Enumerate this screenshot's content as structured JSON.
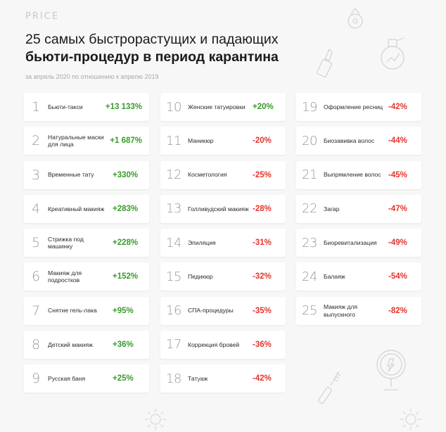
{
  "brand": "PRICE",
  "title_line1": "25 самых быстрорастущих и падающих",
  "title_line2": "бьюти-процедур в период карантина",
  "subtitle": "за апрель 2020 по отношению к апрелю 2019",
  "colors": {
    "positive": "#3a9a2c",
    "negative": "#e8332b"
  },
  "items": [
    {
      "rank": "1",
      "label": "Бьюти-такси",
      "value": "+13 133%",
      "trend": "up"
    },
    {
      "rank": "2",
      "label": "Натуральные маски для лица",
      "value": "+1 687%",
      "trend": "up"
    },
    {
      "rank": "3",
      "label": "Временные тату",
      "value": "+330%",
      "trend": "up"
    },
    {
      "rank": "4",
      "label": "Креативный макияж",
      "value": "+283%",
      "trend": "up"
    },
    {
      "rank": "5",
      "label": "Стрижка под машинку",
      "value": "+228%",
      "trend": "up"
    },
    {
      "rank": "6",
      "label": "Макияж для подростков",
      "value": "+152%",
      "trend": "up"
    },
    {
      "rank": "7",
      "label": "Снятие гель-лака",
      "value": "+95%",
      "trend": "up"
    },
    {
      "rank": "8",
      "label": "Детский макияж",
      "value": "+36%",
      "trend": "up"
    },
    {
      "rank": "9",
      "label": "Русская баня",
      "value": "+25%",
      "trend": "up"
    },
    {
      "rank": "10",
      "label": "Женские татуировки",
      "value": "+20%",
      "trend": "up"
    },
    {
      "rank": "11",
      "label": "Маникюр",
      "value": "-20%",
      "trend": "down"
    },
    {
      "rank": "12",
      "label": "Косметология",
      "value": "-25%",
      "trend": "down"
    },
    {
      "rank": "13",
      "label": "Голливудский макияж",
      "value": "-28%",
      "trend": "down"
    },
    {
      "rank": "14",
      "label": "Эпиляция",
      "value": "-31%",
      "trend": "down"
    },
    {
      "rank": "15",
      "label": "Педикюр",
      "value": "-32%",
      "trend": "down"
    },
    {
      "rank": "16",
      "label": "СПА-процедуры",
      "value": "-35%",
      "trend": "down"
    },
    {
      "rank": "17",
      "label": "Коррекция бровей",
      "value": "-36%",
      "trend": "down"
    },
    {
      "rank": "18",
      "label": "Татуаж",
      "value": "-42%",
      "trend": "down"
    },
    {
      "rank": "19",
      "label": "Оформление ресниц",
      "value": "-42%",
      "trend": "down"
    },
    {
      "rank": "20",
      "label": "Биозавивка волос",
      "value": "-44%",
      "trend": "down"
    },
    {
      "rank": "21",
      "label": "Выпрямление волос",
      "value": "-45%",
      "trend": "down"
    },
    {
      "rank": "22",
      "label": "Загар",
      "value": "-47%",
      "trend": "down"
    },
    {
      "rank": "23",
      "label": "Биоревитализация",
      "value": "-49%",
      "trend": "down"
    },
    {
      "rank": "24",
      "label": "Балаяж",
      "value": "-54%",
      "trend": "down"
    },
    {
      "rank": "25",
      "label": "Макияж для выпускного",
      "value": "-82%",
      "trend": "down"
    }
  ],
  "decorations": [
    "perfume-bottle-icon",
    "lipstick-icon",
    "spray-bottle-icon",
    "mirror-icon",
    "mascara-icon",
    "gear-icon"
  ]
}
